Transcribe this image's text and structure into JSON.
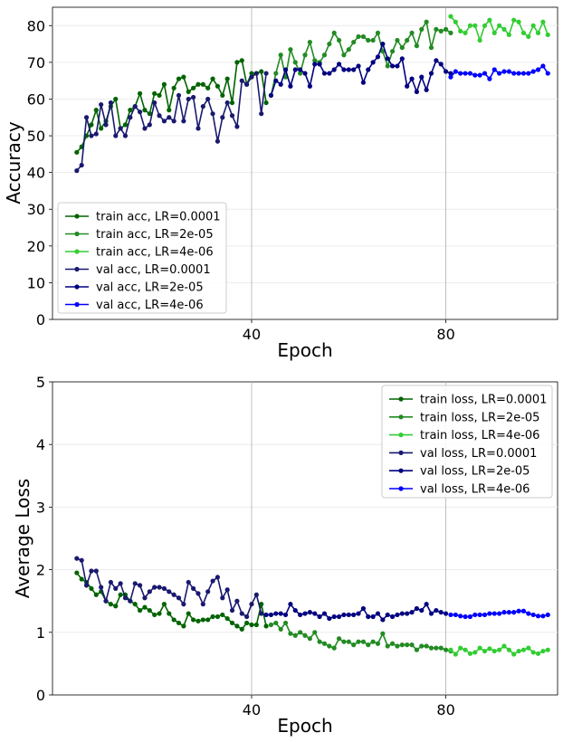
{
  "chart_data": [
    {
      "type": "line",
      "xlabel": "Epoch",
      "ylabel": "Accuracy",
      "xlim": [
        -1,
        103
      ],
      "ylim": [
        0,
        85
      ],
      "xticks": [
        40,
        80
      ],
      "yticks": [
        0,
        10,
        20,
        30,
        40,
        50,
        60,
        70,
        80
      ],
      "x_grid": true,
      "legend_position": "lower-left",
      "series": [
        {
          "name": "train acc, LR=0.0001",
          "color": "#006400",
          "x_start": 4,
          "values": [
            45.5,
            47,
            50,
            53,
            57,
            52,
            54,
            58,
            60,
            52,
            53,
            57,
            58,
            61.5,
            57,
            56,
            61.5,
            61,
            64,
            57,
            63,
            65.5,
            66,
            62,
            63,
            64,
            64,
            63,
            65.5,
            63.5,
            61,
            65.5,
            59,
            70,
            70.5,
            64,
            67,
            67,
            67.5,
            59
          ]
        },
        {
          "name": "train acc, LR=2e-05",
          "color": "#228B22",
          "x_start": 44,
          "values": [
            61,
            67,
            72,
            66,
            73.5,
            70,
            67,
            72,
            75.5,
            70.5,
            70,
            72,
            75,
            78,
            76,
            72,
            73.5,
            75.5,
            77,
            77,
            76,
            76,
            78,
            73,
            69,
            73,
            76,
            74,
            76,
            78,
            74.5,
            79,
            81,
            74,
            79,
            78.5,
            79,
            78
          ]
        },
        {
          "name": "train acc, LR=4e-06",
          "color": "#32CD32",
          "x_start": 81,
          "values": [
            82.5,
            81,
            78.5,
            78,
            80,
            80,
            76,
            80,
            81.5,
            78,
            80,
            79,
            77.5,
            81.5,
            81,
            78,
            77,
            80,
            78,
            81,
            77.5
          ]
        },
        {
          "name": "val acc, LR=0.0001",
          "color": "#191970",
          "x_start": 4,
          "values": [
            40.5,
            42,
            55,
            50,
            50.5,
            58.5,
            53,
            59,
            50,
            52,
            50,
            55,
            58,
            56.5,
            52,
            53,
            59,
            55.5,
            54,
            55,
            54,
            61,
            54,
            60,
            60.5,
            52,
            58,
            60,
            56,
            48.5,
            55,
            59,
            55.5,
            52.5,
            65,
            64,
            66,
            67,
            56,
            67
          ]
        },
        {
          "name": "val acc, LR=2e-05",
          "color": "#000080",
          "x_start": 44,
          "values": [
            61,
            65,
            64,
            68,
            63.5,
            68,
            68,
            67,
            63.5,
            69.5,
            69.5,
            67,
            67,
            68,
            69.5,
            68,
            68,
            68,
            69,
            64.5,
            68,
            70,
            71.5,
            75,
            71,
            69,
            69,
            71,
            63.5,
            65.5,
            62,
            66,
            62.5,
            67,
            70.5,
            69.5,
            67.5,
            67
          ]
        },
        {
          "name": "val acc, LR=4e-06",
          "color": "#0000FF",
          "x_start": 81,
          "values": [
            66,
            67.5,
            67,
            67,
            67,
            66.5,
            66.5,
            67,
            65.5,
            68,
            67,
            67.5,
            67.5,
            67,
            67,
            67,
            67,
            67.5,
            68,
            69,
            67
          ]
        }
      ]
    },
    {
      "type": "line",
      "xlabel": "Epoch",
      "ylabel": "Average Loss",
      "xlim": [
        -1,
        103
      ],
      "ylim": [
        0,
        5
      ],
      "xticks": [
        40,
        80
      ],
      "yticks": [
        0,
        1,
        2,
        3,
        4,
        5
      ],
      "x_grid": true,
      "legend_position": "upper-right",
      "series": [
        {
          "name": "train loss, LR=0.0001",
          "color": "#006400",
          "x_start": 4,
          "values": [
            1.95,
            1.85,
            1.8,
            1.7,
            1.6,
            1.65,
            1.5,
            1.45,
            1.42,
            1.6,
            1.6,
            1.5,
            1.45,
            1.35,
            1.4,
            1.35,
            1.28,
            1.3,
            1.45,
            1.3,
            1.2,
            1.15,
            1.1,
            1.3,
            1.2,
            1.18,
            1.2,
            1.2,
            1.25,
            1.25,
            1.28,
            1.22,
            1.15,
            1.1,
            1.05,
            1.15,
            1.12,
            1.12,
            1.45,
            1.1
          ]
        },
        {
          "name": "train loss, LR=2e-05",
          "color": "#228B22",
          "x_start": 44,
          "values": [
            1.12,
            1.15,
            1.05,
            1.15,
            0.98,
            0.95,
            1.0,
            0.95,
            0.9,
            1.0,
            0.85,
            0.82,
            0.78,
            0.75,
            0.9,
            0.85,
            0.85,
            0.8,
            0.85,
            0.85,
            0.8,
            0.85,
            0.82,
            0.98,
            0.78,
            0.82,
            0.78,
            0.8,
            0.8,
            0.8,
            0.72,
            0.78,
            0.78,
            0.75,
            0.75,
            0.75,
            0.72,
            0.7
          ]
        },
        {
          "name": "train loss, LR=4e-06",
          "color": "#32CD32",
          "x_start": 81,
          "values": [
            0.72,
            0.65,
            0.75,
            0.72,
            0.66,
            0.68,
            0.75,
            0.7,
            0.74,
            0.7,
            0.72,
            0.78,
            0.72,
            0.65,
            0.7,
            0.72,
            0.75,
            0.68,
            0.66,
            0.7,
            0.72
          ]
        }
      ]
    }
  ],
  "loss_val_series": [
    {
      "name": "val loss, LR=0.0001",
      "color": "#191970",
      "x_start": 4,
      "values": [
        2.18,
        2.15,
        1.75,
        1.98,
        1.98,
        1.72,
        1.5,
        1.8,
        1.7,
        1.78,
        1.55,
        1.5,
        1.78,
        1.75,
        1.55,
        1.65,
        1.72,
        1.72,
        1.7,
        1.65,
        1.6,
        1.55,
        1.45,
        1.8,
        1.7,
        1.62,
        1.45,
        1.65,
        1.82,
        1.88,
        1.55,
        1.68,
        1.35,
        1.5,
        1.3,
        1.25,
        1.45,
        1.6,
        1.3
      ]
    },
    {
      "name": "val loss, LR=2e-05",
      "color": "#000080",
      "x_start": 43,
      "values": [
        1.28,
        1.28,
        1.3,
        1.3,
        1.28,
        1.45,
        1.35,
        1.28,
        1.3,
        1.32,
        1.3,
        1.25,
        1.3,
        1.22,
        1.25,
        1.25,
        1.28,
        1.28,
        1.28,
        1.3,
        1.38,
        1.25,
        1.25,
        1.3,
        1.2,
        1.28,
        1.25,
        1.28,
        1.3,
        1.3,
        1.32,
        1.38,
        1.35,
        1.45,
        1.3,
        1.35,
        1.32,
        1.3
      ]
    },
    {
      "name": "val loss, LR=4e-06",
      "color": "#0000FF",
      "x_start": 81,
      "values": [
        1.28,
        1.28,
        1.26,
        1.25,
        1.25,
        1.28,
        1.28,
        1.28,
        1.3,
        1.3,
        1.3,
        1.32,
        1.32,
        1.32,
        1.34,
        1.34,
        1.3,
        1.28,
        1.26,
        1.26,
        1.28
      ]
    }
  ]
}
